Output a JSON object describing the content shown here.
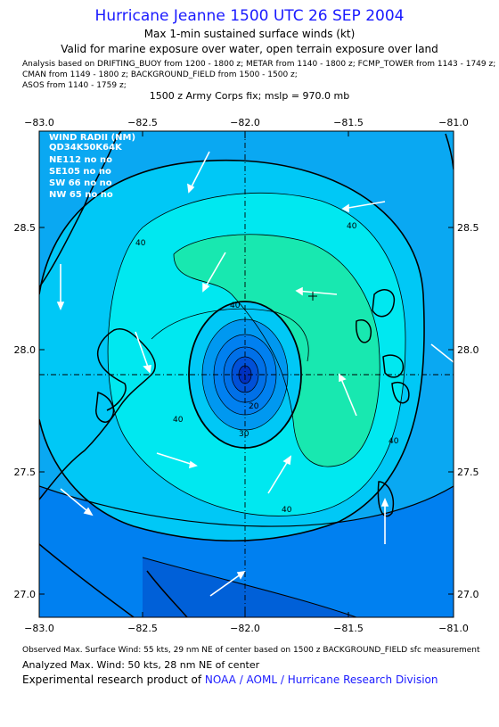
{
  "header": {
    "title": "Hurricane Jeanne 1500 UTC 26 SEP 2004",
    "subtitle": "Max 1-min sustained surface winds (kt)",
    "valid": "Valid for marine exposure over water, open terrain exposure over land",
    "analysis_line1": "Analysis based on  DRIFTING_BUOY from 1200 - 1800 z;  METAR from 1140 - 1800 z;  FCMP_TOWER from 1143 - 1749 z;",
    "analysis_line2": "CMAN from 1149 - 1800 z;  BACKGROUND_FIELD from 1500 - 1500 z;",
    "analysis_line3": "ASOS from 1140 - 1759 z;",
    "fix": "1500 z Army Corps fix; mslp = 970.0 mb"
  },
  "map": {
    "lon_labels": [
      "−83.0",
      "−82.5",
      "−82.0",
      "−81.5",
      "−81.0"
    ],
    "lat_labels": [
      "28.5",
      "28.0",
      "27.5",
      "27.0"
    ],
    "contour_labels": [
      "40",
      "40",
      "40",
      "40",
      "40",
      "40",
      "30",
      "20"
    ],
    "wind_radii": {
      "header": "WIND RADII (NM)",
      "cols": "QD34K50K64K",
      "rows": [
        "NE112 no  no",
        "SE105 no  no",
        "SW 66  no  no",
        "NW 65  no  no"
      ]
    },
    "colors": {
      "ocean_outer": "#0aa8f2",
      "band_30": "#00c8f6",
      "band_40": "#00e8f0",
      "band_50": "#18e8b0",
      "band_low": "#0080f0",
      "band_lowest": "#0060d8",
      "core_1": "#0098f0",
      "core_2": "#0070e8",
      "core_3": "#0050d8",
      "core_4": "#0030c0"
    }
  },
  "footer": {
    "observed": "Observed Max. Surface Wind: 55 kts, 29 nm NE of center based on 1500 z BACKGROUND_FIELD sfc measurement",
    "analyzed": "Analyzed Max. Wind: 50 kts, 28 nm NE of center",
    "credit_prefix": "Experimental research product of ",
    "credit_org": "NOAA / AOML / Hurricane Research Division"
  }
}
